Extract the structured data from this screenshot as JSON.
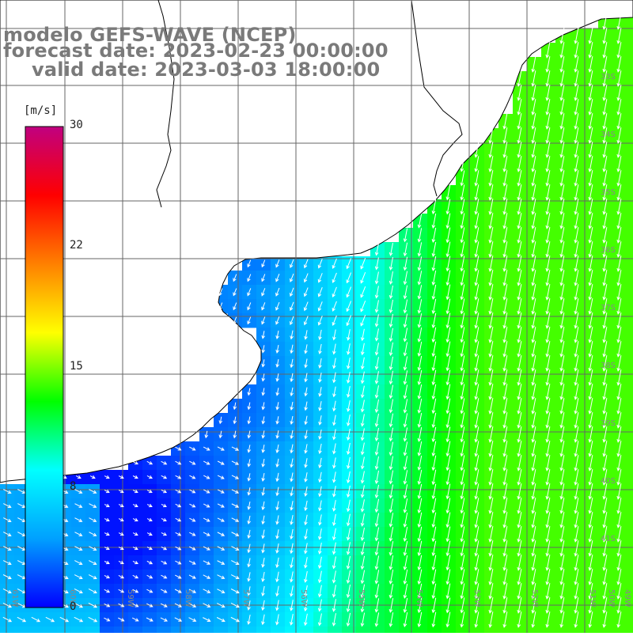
{
  "title": {
    "model": "modelo GEFS-WAVE (NCEP)",
    "forecast_date": "forecast date: 2023-02-23 00:00:00",
    "valid_date": "valid date: 2023-03-03 18:00:00"
  },
  "colorbar": {
    "unit": "[m/s]",
    "ticks": [
      "30",
      "22",
      "15",
      "8",
      "0"
    ],
    "tick_values": [
      30,
      22,
      15,
      8,
      0
    ],
    "min": 0,
    "max": 30,
    "colors": [
      "#0000ff",
      "#00a0ff",
      "#00ffff",
      "#00ff00",
      "#ffff00",
      "#ff8000",
      "#ff0000",
      "#c00080"
    ]
  },
  "map": {
    "land_color": "#ffffff",
    "coast_color": "#000000",
    "grid_color": "#666666",
    "arrow_color": "#ffffff",
    "lat_labels": [
      "33S",
      "34S",
      "35S",
      "36S",
      "37S",
      "38S",
      "39S",
      "40S",
      "41S"
    ],
    "lon_labels": [
      "61W",
      "60W",
      "59W",
      "58W",
      "57W",
      "56W",
      "55W",
      "54W",
      "53W",
      "52W",
      "51W",
      "50W",
      "49W"
    ]
  }
}
